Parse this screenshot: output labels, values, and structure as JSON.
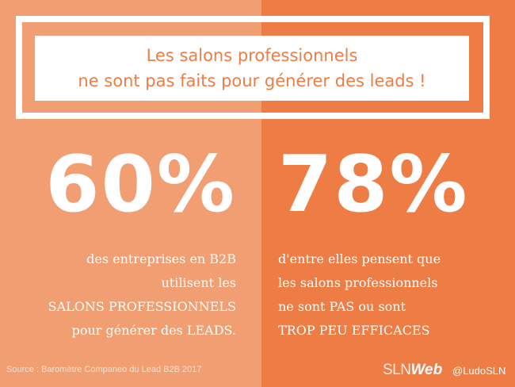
{
  "title": {
    "line1": "Les salons professionnels",
    "line2": "ne sont pas faits pour générer des leads !"
  },
  "stats": {
    "left": {
      "value": "60%",
      "lines": [
        "des entreprises en B2B",
        "utilisent les",
        "SALONS PROFESSIONNELS",
        "pour générer des LEADS."
      ]
    },
    "right": {
      "value": "78%",
      "lines": [
        "d'entre elles pensent que",
        "les salons professionnels",
        "ne sont PAS ou sont",
        "TROP PEU EFFICACES"
      ]
    }
  },
  "footer": {
    "source": "Source : Baromètre Companeo du Lead B2B 2017",
    "logo_part1": "SLN",
    "logo_part2": "Web",
    "handle": "@LudoSLN"
  },
  "colors": {
    "left_panel": "#f19e72",
    "right_panel": "#ed7d45",
    "title_text": "#ed7d45"
  }
}
